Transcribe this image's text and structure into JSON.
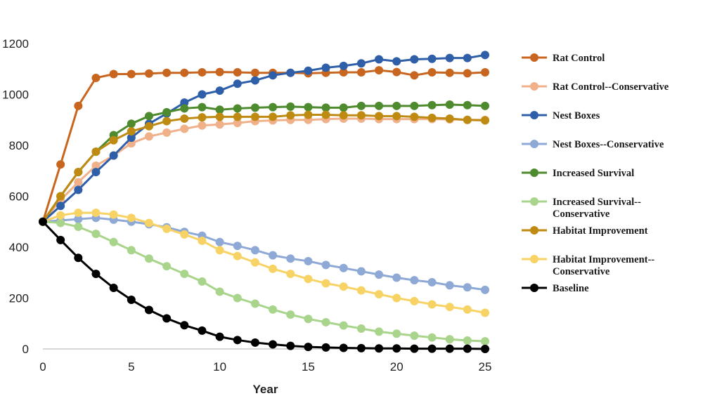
{
  "chart_data": {
    "type": "line",
    "title": "",
    "xlabel": "Year",
    "ylabel": "",
    "xlim": [
      0,
      25
    ],
    "ylim": [
      0,
      1200
    ],
    "xticks": [
      "0",
      "5",
      "10",
      "15",
      "20",
      "25"
    ],
    "yticks": [
      "0",
      "200",
      "400",
      "600",
      "800",
      "1000",
      "1200"
    ],
    "grid": false,
    "legend_position": "right",
    "x": [
      0,
      1,
      2,
      3,
      4,
      5,
      6,
      7,
      8,
      9,
      10,
      11,
      12,
      13,
      14,
      15,
      16,
      17,
      18,
      19,
      20,
      21,
      22,
      23,
      24,
      25
    ],
    "series": [
      {
        "name": "Rat Control",
        "legend_lines": [
          "Rat Control"
        ],
        "color": "#c8661f",
        "values": [
          500,
          725,
          955,
          1065,
          1080,
          1080,
          1082,
          1085,
          1085,
          1087,
          1088,
          1087,
          1085,
          1085,
          1085,
          1083,
          1085,
          1087,
          1087,
          1095,
          1088,
          1075,
          1087,
          1085,
          1083,
          1087
        ]
      },
      {
        "name": "Rat Control--Conservative",
        "legend_lines": [
          "Rat Control--Conservative"
        ],
        "color": "#f0b08a",
        "values": [
          500,
          585,
          655,
          720,
          760,
          808,
          835,
          850,
          865,
          878,
          882,
          888,
          895,
          898,
          900,
          900,
          903,
          905,
          905,
          903,
          903,
          903,
          903,
          902,
          900,
          900
        ]
      },
      {
        "name": "Nest Boxes",
        "legend_lines": [
          "Nest Boxes"
        ],
        "color": "#2e5fa8",
        "values": [
          500,
          562,
          625,
          695,
          760,
          830,
          885,
          925,
          968,
          1000,
          1015,
          1042,
          1055,
          1075,
          1085,
          1093,
          1105,
          1112,
          1122,
          1138,
          1130,
          1138,
          1140,
          1143,
          1143,
          1155
        ]
      },
      {
        "name": "Nest Boxes--Conservative",
        "legend_lines": [
          "Nest Boxes--Conservative"
        ],
        "color": "#8ea9d6",
        "values": [
          500,
          505,
          510,
          515,
          508,
          500,
          490,
          478,
          460,
          445,
          420,
          405,
          388,
          368,
          355,
          345,
          330,
          318,
          305,
          292,
          280,
          270,
          262,
          250,
          242,
          232
        ]
      },
      {
        "name": "Increased Survival",
        "legend_lines": [
          "Increased Survival"
        ],
        "color": "#4e8a2e",
        "values": [
          500,
          600,
          695,
          775,
          840,
          885,
          915,
          930,
          945,
          950,
          940,
          945,
          948,
          950,
          952,
          950,
          948,
          948,
          955,
          955,
          955,
          955,
          958,
          960,
          958,
          955
        ]
      },
      {
        "name": "Increased Survival--Conservative",
        "legend_lines": [
          "Increased Survival--",
          "Conservative"
        ],
        "color": "#a9d48c",
        "values": [
          500,
          495,
          480,
          452,
          420,
          388,
          355,
          325,
          295,
          265,
          225,
          200,
          178,
          155,
          135,
          118,
          105,
          92,
          80,
          68,
          60,
          52,
          45,
          38,
          33,
          30
        ]
      },
      {
        "name": "Habitat Improvement",
        "legend_lines": [
          "Habitat Improvement"
        ],
        "color": "#bf8a12",
        "values": [
          500,
          600,
          695,
          775,
          820,
          855,
          875,
          895,
          905,
          910,
          912,
          912,
          912,
          912,
          918,
          920,
          920,
          918,
          918,
          915,
          915,
          912,
          908,
          905,
          900,
          898
        ]
      },
      {
        "name": "Habitat Improvement--Conservative",
        "legend_lines": [
          "Habitat Improvement--",
          "Conservative"
        ],
        "color": "#f7d264",
        "values": [
          500,
          525,
          535,
          535,
          528,
          515,
          495,
          472,
          450,
          425,
          388,
          365,
          340,
          315,
          295,
          275,
          258,
          245,
          230,
          215,
          200,
          188,
          175,
          165,
          155,
          142
        ]
      },
      {
        "name": "Baseline",
        "legend_lines": [
          "Baseline"
        ],
        "color": "#000000",
        "values": [
          500,
          428,
          358,
          295,
          240,
          193,
          153,
          120,
          93,
          72,
          48,
          35,
          25,
          18,
          12,
          8,
          6,
          4,
          3,
          2,
          2,
          1,
          1,
          1,
          1,
          0
        ]
      }
    ]
  }
}
